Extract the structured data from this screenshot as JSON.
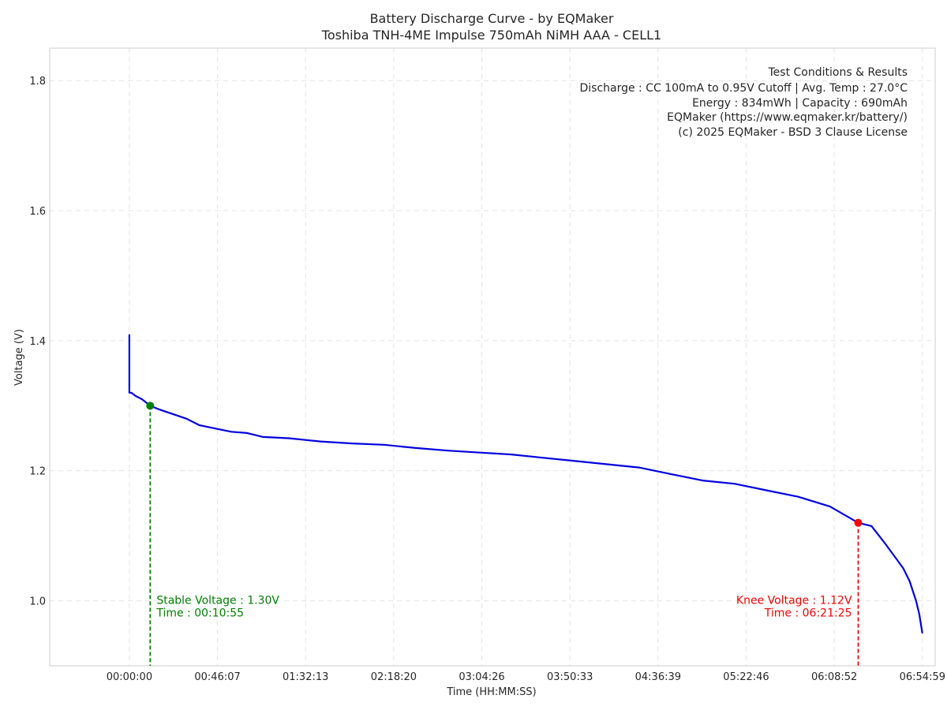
{
  "chart_data": {
    "type": "line",
    "title": "Battery Discharge Curve - by EQMaker",
    "subtitle": "Toshiba TNH-4ME Impulse 750mAh NiMH AAA - CELL1",
    "xlabel": "Time (HH:MM:SS)",
    "ylabel": "Voltage (V)",
    "xlim": [
      -2500,
      25300
    ],
    "ylim": [
      0.9,
      1.85
    ],
    "x_ticks": [
      0,
      2767,
      5533,
      8300,
      11066,
      13833,
      16599,
      19366,
      22132,
      24899
    ],
    "x_tick_labels": [
      "00:00:00",
      "00:46:07",
      "01:32:13",
      "02:18:20",
      "03:04:26",
      "03:50:33",
      "04:36:39",
      "05:22:46",
      "06:08:52",
      "06:54:59"
    ],
    "y_ticks": [
      1.0,
      1.2,
      1.4,
      1.6,
      1.8
    ],
    "y_tick_labels": [
      "1.0",
      "1.2",
      "1.4",
      "1.6",
      "1.8"
    ],
    "grid": true,
    "series": [
      {
        "name": "Voltage",
        "color": "#0000e0",
        "x": [
          0,
          0,
          30,
          60,
          200,
          400,
          655,
          900,
          1200,
          1500,
          1800,
          2200,
          2700,
          3200,
          3700,
          4200,
          5000,
          6000,
          7000,
          8000,
          9000,
          10000,
          11000,
          12000,
          13000,
          14000,
          15000,
          16000,
          17000,
          18000,
          19000,
          20000,
          21000,
          22000,
          22885,
          23300,
          23700,
          24000,
          24300,
          24500,
          24700,
          24800,
          24850,
          24899
        ],
        "y": [
          1.41,
          1.32,
          1.32,
          1.32,
          1.315,
          1.31,
          1.3,
          1.295,
          1.29,
          1.285,
          1.28,
          1.27,
          1.265,
          1.26,
          1.258,
          1.252,
          1.25,
          1.245,
          1.242,
          1.24,
          1.235,
          1.231,
          1.228,
          1.225,
          1.22,
          1.215,
          1.21,
          1.205,
          1.195,
          1.185,
          1.18,
          1.17,
          1.16,
          1.145,
          1.12,
          1.115,
          1.09,
          1.07,
          1.05,
          1.03,
          1.0,
          0.98,
          0.965,
          0.95
        ]
      }
    ],
    "annotations": {
      "stable": {
        "x": 655,
        "y": 1.3,
        "label": "Stable Voltage : 1.30V",
        "time_label": "Time : 00:10:55",
        "color": "#008000"
      },
      "knee": {
        "x": 22885,
        "y": 1.12,
        "label": "Knee Voltage : 1.12V",
        "time_label": "Time : 06:21:25",
        "color": "#ff0000"
      }
    },
    "info_box": {
      "position": "top-right",
      "lines": [
        "Test Conditions & Results",
        "Discharge : CC 100mA to 0.95V Cutoff | Avg. Temp : 27.0°C",
        "Energy : 834mWh | Capacity : 690mAh",
        "EQMaker (https://www.eqmaker.kr/battery/)",
        "(c) 2025 EQMaker - BSD 3 Clause License"
      ]
    }
  }
}
